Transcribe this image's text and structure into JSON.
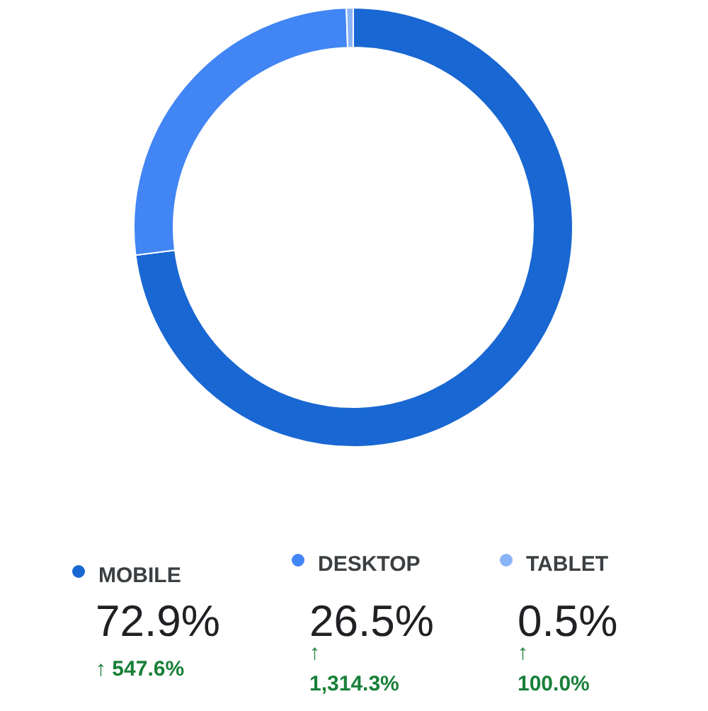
{
  "chart_data": {
    "type": "donut",
    "categories": [
      "MOBILE",
      "DESKTOP",
      "TABLET"
    ],
    "values": [
      72.9,
      26.5,
      0.5
    ],
    "colors": [
      "#1967d2",
      "#4285f4",
      "#8ab4f8"
    ],
    "value_labels": [
      "72.9%",
      "26.5%",
      "0.5%"
    ],
    "annotations": [
      "↑ 547.6%",
      "↑ 1,314.3%",
      "↑ 100.0%"
    ],
    "legend": "bottom"
  }
}
